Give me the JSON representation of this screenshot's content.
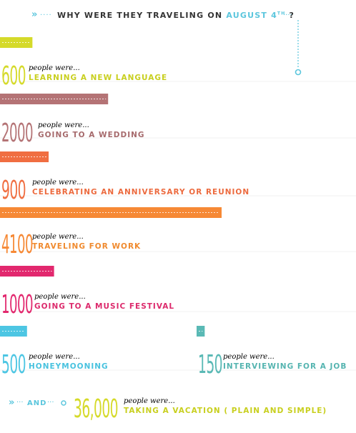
{
  "header": {
    "chevron": "»",
    "leader": "····",
    "title": "WHY WERE THEY TRAVELING ON",
    "date": "AUGUST 4",
    "date_suffix": "TH",
    "trailer": "····",
    "qmark": "?"
  },
  "prefix": "people were...",
  "footer": {
    "chevron": "»",
    "leader": "···",
    "and": "AND",
    "leader2": "···"
  },
  "chart_data": {
    "type": "bar",
    "title": "WHY WERE THEY TRAVELING ON AUGUST 4TH ?",
    "categories": [
      "LEARNING A NEW LANGUAGE",
      "GOING TO A WEDDING",
      "CELEBRATING AN ANNIVERSARY OR REUNION",
      "TRAVELING FOR WORK",
      "GOING TO A MUSIC FESTIVAL",
      "HONEYMOONING",
      "INTERVIEWING FOR A JOB",
      "TAKING A VACATION ( PLAIN AND SIMPLE)"
    ],
    "values": [
      600,
      2000,
      900,
      4100,
      1000,
      500,
      150,
      36000
    ],
    "value_labels": [
      "600",
      "2000",
      "900",
      "4100",
      "1000",
      "500",
      "150",
      "36,000"
    ],
    "colors": [
      "#d5da2a",
      "#b47375",
      "#f06e41",
      "#f68935",
      "#e2286e",
      "#4dc6e3",
      "#5ab9b5",
      "#d5da2a"
    ],
    "label_colors": [
      "#c8cf1e",
      "#a66a6c",
      "#ec6a3e",
      "#f08a2e",
      "#dc2a6c",
      "#48c2df",
      "#55b4b0",
      "#c8cf1e"
    ],
    "bars_drawn": [
      true,
      true,
      true,
      true,
      true,
      true,
      true,
      false
    ]
  }
}
